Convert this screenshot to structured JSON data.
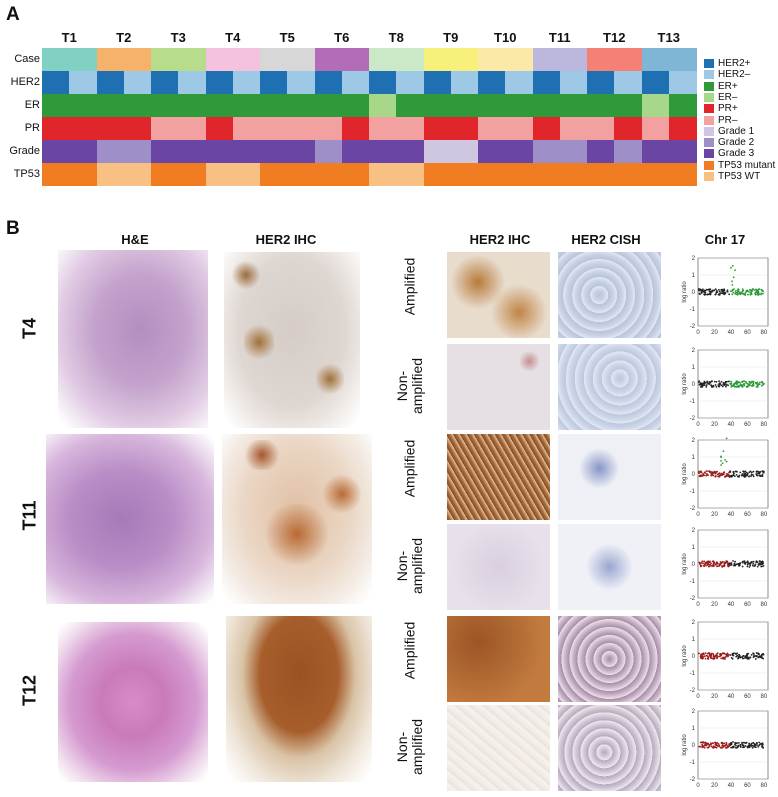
{
  "panel_a": {
    "letter": "A",
    "tumors": [
      "T1",
      "T2",
      "T3",
      "T4",
      "T5",
      "T6",
      "T8",
      "T9",
      "T10",
      "T11",
      "T12",
      "T13"
    ],
    "row_labels": [
      "Case",
      "HER2",
      "ER",
      "PR",
      "Grade",
      "TP53"
    ],
    "colors": {
      "HER2+": "#1f6fb3",
      "HER2-": "#9ec9e6",
      "ER+": "#2e9a3a",
      "ER-": "#a7d88a",
      "PR+": "#e0262a",
      "PR-": "#f3a1a0",
      "Grade 1": "#cfc6e2",
      "Grade 2": "#9f8fc8",
      "Grade 3": "#6a45a4",
      "TP53 mutant": "#f07d22",
      "TP53 WT": "#f8c082"
    },
    "case_colors": [
      "#80d1c4",
      "#f6b26b",
      "#b7dc8c",
      "#f4c2dd",
      "#d7d7d7",
      "#b36cb8",
      "#cbe9c6",
      "#f7f07a",
      "#fbe9a8",
      "#bcb7dc",
      "#f58075",
      "#7fb5d5"
    ],
    "rows": {
      "HER2": [
        [
          "HER2+",
          "HER2-"
        ],
        [
          "HER2+",
          "HER2-"
        ],
        [
          "HER2+",
          "HER2-"
        ],
        [
          "HER2+",
          "HER2-"
        ],
        [
          "HER2+",
          "HER2-"
        ],
        [
          "HER2+",
          "HER2-"
        ],
        [
          "HER2+",
          "HER2-"
        ],
        [
          "HER2+",
          "HER2-"
        ],
        [
          "HER2+",
          "HER2-"
        ],
        [
          "HER2+",
          "HER2-"
        ],
        [
          "HER2+",
          "HER2-"
        ],
        [
          "HER2+",
          "HER2-"
        ]
      ],
      "ER": [
        [
          "ER+",
          "ER+"
        ],
        [
          "ER+",
          "ER+"
        ],
        [
          "ER+",
          "ER+"
        ],
        [
          "ER+",
          "ER+"
        ],
        [
          "ER+",
          "ER+"
        ],
        [
          "ER+",
          "ER+"
        ],
        [
          "ER-",
          "ER+"
        ],
        [
          "ER+",
          "ER+"
        ],
        [
          "ER+",
          "ER+"
        ],
        [
          "ER+",
          "ER+"
        ],
        [
          "ER+",
          "ER+"
        ],
        [
          "ER-",
          "ER+"
        ]
      ],
      "PR": [
        [
          "PR+",
          "PR+"
        ],
        [
          "PR+",
          "PR+"
        ],
        [
          "PR-",
          "PR-"
        ],
        [
          "PR+",
          "PR-"
        ],
        [
          "PR-",
          "PR-"
        ],
        [
          "PR-",
          "PR+"
        ],
        [
          "PR-",
          "PR-"
        ],
        [
          "PR+",
          "PR+"
        ],
        [
          "PR-",
          "PR-"
        ],
        [
          "PR+",
          "PR-"
        ],
        [
          "PR-",
          "PR+"
        ],
        [
          "PR-",
          "PR+"
        ]
      ],
      "Grade": [
        [
          "Grade 3",
          "Grade 3"
        ],
        [
          "Grade 2",
          "Grade 2"
        ],
        [
          "Grade 3",
          "Grade 3"
        ],
        [
          "Grade 3",
          "Grade 3"
        ],
        [
          "Grade 3",
          "Grade 3"
        ],
        [
          "Grade 2",
          "Grade 3"
        ],
        [
          "Grade 3",
          "Grade 3"
        ],
        [
          "Grade 1",
          "Grade 1"
        ],
        [
          "Grade 3",
          "Grade 3"
        ],
        [
          "Grade 2",
          "Grade 2"
        ],
        [
          "Grade 3",
          "Grade 2"
        ],
        [
          "Grade 3",
          "Grade 3"
        ]
      ],
      "TP53": [
        [
          "TP53 mutant",
          "TP53 mutant"
        ],
        [
          "TP53 WT",
          "TP53 WT"
        ],
        [
          "TP53 mutant",
          "TP53 mutant"
        ],
        [
          "TP53 WT",
          "TP53 WT"
        ],
        [
          "TP53 mutant",
          "TP53 mutant"
        ],
        [
          "TP53 mutant",
          "TP53 mutant"
        ],
        [
          "TP53 WT",
          "TP53 WT"
        ],
        [
          "TP53 mutant",
          "TP53 mutant"
        ],
        [
          "TP53 mutant",
          "TP53 mutant"
        ],
        [
          "TP53 mutant",
          "TP53 mutant"
        ],
        [
          "TP53 mutant",
          "TP53 mutant"
        ],
        [
          "TP53 mutant",
          "TP53 mutant"
        ]
      ]
    },
    "legend": [
      "HER2+",
      "HER2–",
      "ER+",
      "ER–",
      "PR+",
      "PR–",
      "Grade 1",
      "Grade 2",
      "Grade 3",
      "TP53 mutant",
      "TP53 WT"
    ],
    "legend_keys": [
      "HER2+",
      "HER2-",
      "ER+",
      "ER-",
      "PR+",
      "PR-",
      "Grade 1",
      "Grade 2",
      "Grade 3",
      "TP53 mutant",
      "TP53 WT"
    ]
  },
  "panel_b": {
    "letter": "B",
    "left_titles": [
      "H&E",
      "HER2 IHC"
    ],
    "right_titles": [
      "HER2 IHC",
      "HER2 CISH",
      "Chr 17"
    ],
    "tumor_rows": [
      "T4",
      "T11",
      "T12"
    ],
    "status_labels": [
      "Amplified",
      "Non-\namplified",
      "Amplified",
      "Non-\namplified",
      "Amplified",
      "Non-\namplified"
    ],
    "plot_ylabel": "log ratio",
    "plot_xticks": [
      "0",
      "20",
      "40",
      "60",
      "80"
    ],
    "plot_yticks": [
      "2",
      "1",
      "0",
      "-1",
      "-2"
    ]
  }
}
